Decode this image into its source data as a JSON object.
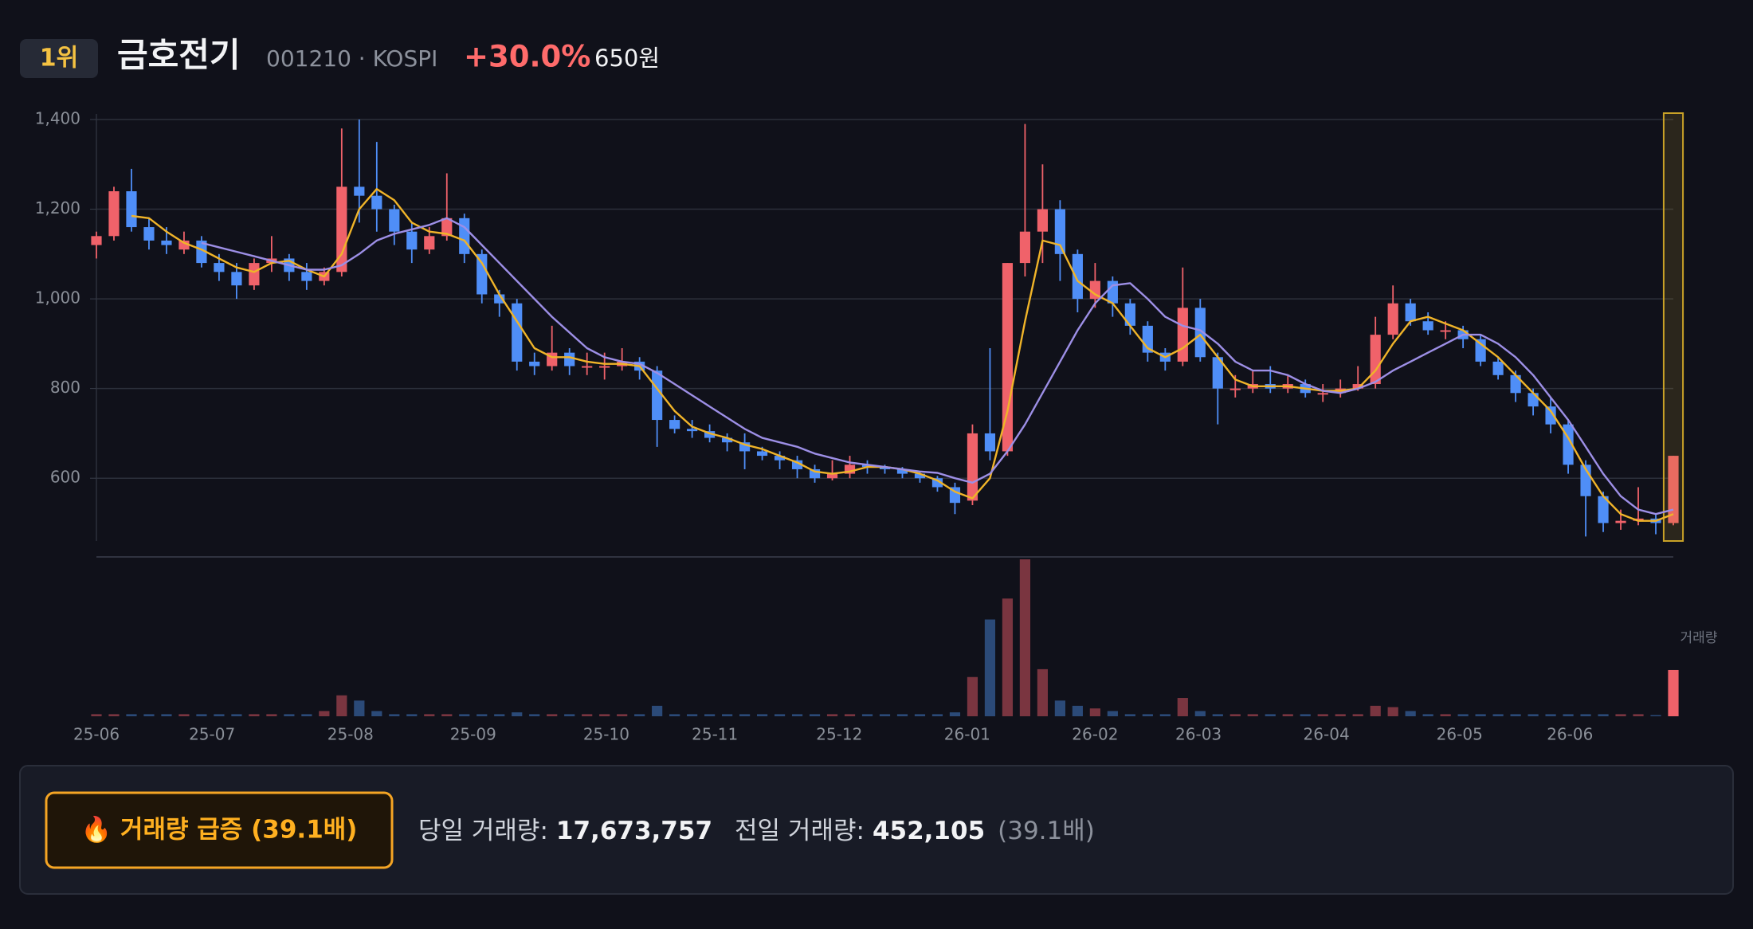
{
  "header": {
    "rank": "1위",
    "name": "금호전기",
    "code": "001210 · KOSPI",
    "change": "+30.0%",
    "price": "650원"
  },
  "chart_data": {
    "type": "candlestick",
    "ylim": [
      460,
      1400
    ],
    "yticks": [
      {
        "value": 1400,
        "label": "1,400"
      },
      {
        "value": 1200,
        "label": "1,200"
      },
      {
        "value": 1000,
        "label": "1,000"
      },
      800,
      600
    ],
    "grid": true,
    "xlim": [
      0,
      90
    ],
    "xticks": [
      {
        "value": 0,
        "label": "25-06"
      },
      {
        "value": 6.6,
        "label": "25-07"
      },
      {
        "value": 14.5,
        "label": "25-08"
      },
      {
        "value": 21.5,
        "label": "25-09"
      },
      {
        "value": 29.1,
        "label": "25-10"
      },
      {
        "value": 35.3,
        "label": "25-11"
      },
      {
        "value": 42.4,
        "label": "25-12"
      },
      {
        "value": 49.7,
        "label": "26-01"
      },
      {
        "value": 57.0,
        "label": "26-02"
      },
      {
        "value": 62.9,
        "label": "26-03"
      },
      {
        "value": 70.2,
        "label": "26-04"
      },
      {
        "value": 77.8,
        "label": "26-05"
      },
      {
        "value": 84.1,
        "label": "26-06"
      }
    ],
    "colors": {
      "up": "#f0626a",
      "down": "#4f8ef7",
      "vol_up": "#7a3540",
      "vol_down": "#2b4a78",
      "highlight": "#c9a227"
    },
    "ohlc": [
      [
        1120,
        1150,
        1090,
        1140
      ],
      [
        1140,
        1250,
        1130,
        1240
      ],
      [
        1240,
        1290,
        1150,
        1160
      ],
      [
        1160,
        1180,
        1110,
        1130
      ],
      [
        1130,
        1160,
        1100,
        1120
      ],
      [
        1110,
        1150,
        1100,
        1130
      ],
      [
        1130,
        1140,
        1070,
        1080
      ],
      [
        1080,
        1100,
        1040,
        1060
      ],
      [
        1060,
        1080,
        1000,
        1030
      ],
      [
        1030,
        1090,
        1020,
        1080
      ],
      [
        1080,
        1140,
        1060,
        1090
      ],
      [
        1090,
        1100,
        1040,
        1060
      ],
      [
        1060,
        1080,
        1020,
        1040
      ],
      [
        1040,
        1070,
        1030,
        1060
      ],
      [
        1060,
        1380,
        1050,
        1250
      ],
      [
        1250,
        1400,
        1170,
        1230
      ],
      [
        1230,
        1350,
        1150,
        1200
      ],
      [
        1200,
        1210,
        1120,
        1150
      ],
      [
        1150,
        1170,
        1080,
        1110
      ],
      [
        1110,
        1160,
        1100,
        1140
      ],
      [
        1140,
        1280,
        1130,
        1180
      ],
      [
        1180,
        1190,
        1080,
        1100
      ],
      [
        1100,
        1110,
        990,
        1010
      ],
      [
        1010,
        1020,
        960,
        990
      ],
      [
        990,
        1000,
        840,
        860
      ],
      [
        860,
        880,
        830,
        850
      ],
      [
        850,
        940,
        840,
        880
      ],
      [
        880,
        890,
        830,
        850
      ],
      [
        850,
        880,
        830,
        850
      ],
      [
        850,
        880,
        820,
        850
      ],
      [
        850,
        890,
        840,
        860
      ],
      [
        860,
        870,
        820,
        840
      ],
      [
        840,
        850,
        670,
        730
      ],
      [
        730,
        740,
        700,
        710
      ],
      [
        710,
        730,
        690,
        705
      ],
      [
        705,
        720,
        680,
        690
      ],
      [
        690,
        700,
        660,
        680
      ],
      [
        680,
        700,
        620,
        660
      ],
      [
        660,
        670,
        640,
        650
      ],
      [
        650,
        660,
        620,
        640
      ],
      [
        640,
        650,
        600,
        620
      ],
      [
        620,
        630,
        590,
        600
      ],
      [
        600,
        640,
        595,
        610
      ],
      [
        610,
        650,
        600,
        630
      ],
      [
        630,
        640,
        610,
        625
      ],
      [
        625,
        630,
        610,
        620
      ],
      [
        620,
        625,
        600,
        610
      ],
      [
        610,
        615,
        590,
        600
      ],
      [
        600,
        605,
        570,
        580
      ],
      [
        580,
        590,
        520,
        545
      ],
      [
        550,
        720,
        540,
        700
      ],
      [
        700,
        890,
        640,
        660
      ],
      [
        660,
        1080,
        650,
        1080
      ],
      [
        1080,
        1390,
        1050,
        1150
      ],
      [
        1150,
        1300,
        1080,
        1200
      ],
      [
        1200,
        1220,
        1040,
        1100
      ],
      [
        1100,
        1110,
        970,
        1000
      ],
      [
        1000,
        1080,
        980,
        1040
      ],
      [
        1040,
        1050,
        960,
        990
      ],
      [
        990,
        1000,
        920,
        940
      ],
      [
        940,
        950,
        860,
        880
      ],
      [
        880,
        890,
        840,
        860
      ],
      [
        860,
        1070,
        850,
        980
      ],
      [
        980,
        1000,
        860,
        870
      ],
      [
        870,
        880,
        720,
        800
      ],
      [
        800,
        830,
        780,
        800
      ],
      [
        800,
        840,
        790,
        810
      ],
      [
        810,
        850,
        790,
        800
      ],
      [
        800,
        830,
        790,
        810
      ],
      [
        810,
        820,
        780,
        790
      ],
      [
        790,
        810,
        770,
        790
      ],
      [
        790,
        820,
        780,
        800
      ],
      [
        800,
        850,
        795,
        810
      ],
      [
        810,
        960,
        800,
        920
      ],
      [
        920,
        1030,
        910,
        990
      ],
      [
        990,
        1000,
        940,
        950
      ],
      [
        950,
        970,
        920,
        930
      ],
      [
        930,
        950,
        910,
        930
      ],
      [
        930,
        940,
        890,
        910
      ],
      [
        910,
        920,
        850,
        860
      ],
      [
        860,
        870,
        820,
        830
      ],
      [
        830,
        840,
        770,
        790
      ],
      [
        790,
        800,
        740,
        760
      ],
      [
        760,
        780,
        700,
        720
      ],
      [
        720,
        730,
        610,
        630
      ],
      [
        630,
        640,
        470,
        560
      ],
      [
        560,
        570,
        480,
        500
      ],
      [
        500,
        530,
        485,
        505
      ],
      [
        505,
        580,
        495,
        510
      ],
      [
        510,
        520,
        475,
        500
      ],
      [
        500,
        650,
        495,
        650
      ]
    ],
    "ma": [
      {
        "name": "MA5",
        "color": "#f0b429",
        "values": [
          null,
          null,
          1185,
          1180,
          1150,
          1125,
          1110,
          1090,
          1070,
          1060,
          1080,
          1085,
          1065,
          1050,
          1100,
          1200,
          1245,
          1220,
          1170,
          1150,
          1145,
          1130,
          1080,
          1010,
          950,
          890,
          870,
          870,
          860,
          855,
          855,
          850,
          800,
          750,
          715,
          700,
          690,
          675,
          665,
          650,
          635,
          615,
          610,
          615,
          625,
          625,
          620,
          610,
          595,
          570,
          555,
          600,
          750,
          950,
          1130,
          1120,
          1040,
          1010,
          990,
          940,
          890,
          870,
          890,
          920,
          870,
          820,
          805,
          805,
          805,
          800,
          795,
          795,
          800,
          840,
          900,
          950,
          960,
          945,
          930,
          900,
          870,
          830,
          790,
          750,
          690,
          620,
          560,
          520,
          505,
          505,
          520
        ]
      },
      {
        "name": "MA20",
        "color": "#9d8fe6",
        "values": [
          null,
          null,
          null,
          null,
          null,
          null,
          1125,
          1115,
          1105,
          1095,
          1085,
          1075,
          1065,
          1065,
          1075,
          1100,
          1130,
          1145,
          1155,
          1165,
          1180,
          1160,
          1120,
          1080,
          1040,
          1000,
          960,
          925,
          890,
          870,
          860,
          855,
          835,
          810,
          785,
          760,
          735,
          710,
          690,
          680,
          670,
          655,
          645,
          635,
          630,
          625,
          620,
          615,
          612,
          600,
          590,
          610,
          660,
          720,
          790,
          860,
          930,
          990,
          1030,
          1035,
          1000,
          960,
          940,
          930,
          900,
          860,
          840,
          840,
          830,
          810,
          795,
          790,
          800,
          815,
          840,
          860,
          880,
          900,
          920,
          920,
          900,
          870,
          830,
          780,
          730,
          670,
          610,
          560,
          530,
          520,
          530
        ]
      }
    ],
    "volume_label": "거래량",
    "vlim": [
      0,
      60000000
    ],
    "volume": [
      800000,
      800000,
      800000,
      800000,
      800000,
      800000,
      800000,
      800000,
      800000,
      800000,
      800000,
      800000,
      800000,
      2000000,
      8000000,
      6000000,
      2000000,
      800000,
      800000,
      800000,
      800000,
      800000,
      800000,
      800000,
      1500000,
      800000,
      800000,
      800000,
      800000,
      800000,
      800000,
      800000,
      4000000,
      800000,
      800000,
      800000,
      800000,
      800000,
      800000,
      800000,
      800000,
      800000,
      800000,
      800000,
      800000,
      800000,
      800000,
      800000,
      800000,
      1500000,
      15000000,
      37000000,
      45000000,
      60000000,
      18000000,
      6000000,
      4000000,
      3000000,
      2000000,
      800000,
      800000,
      800000,
      7000000,
      2000000,
      800000,
      800000,
      800000,
      800000,
      800000,
      800000,
      800000,
      800000,
      800000,
      4000000,
      3500000,
      2000000,
      800000,
      800000,
      800000,
      800000,
      800000,
      800000,
      800000,
      800000,
      800000,
      800000,
      800000,
      800000,
      800000,
      452105,
      17673757
    ]
  },
  "info": {
    "badge": "🔥 거래량 급증 (39.1배)",
    "today_label": "당일 거래량:",
    "today_value": "17,673,757",
    "prev_label": "전일 거래량:",
    "prev_value": "452,105",
    "ratio": "(39.1배)"
  }
}
